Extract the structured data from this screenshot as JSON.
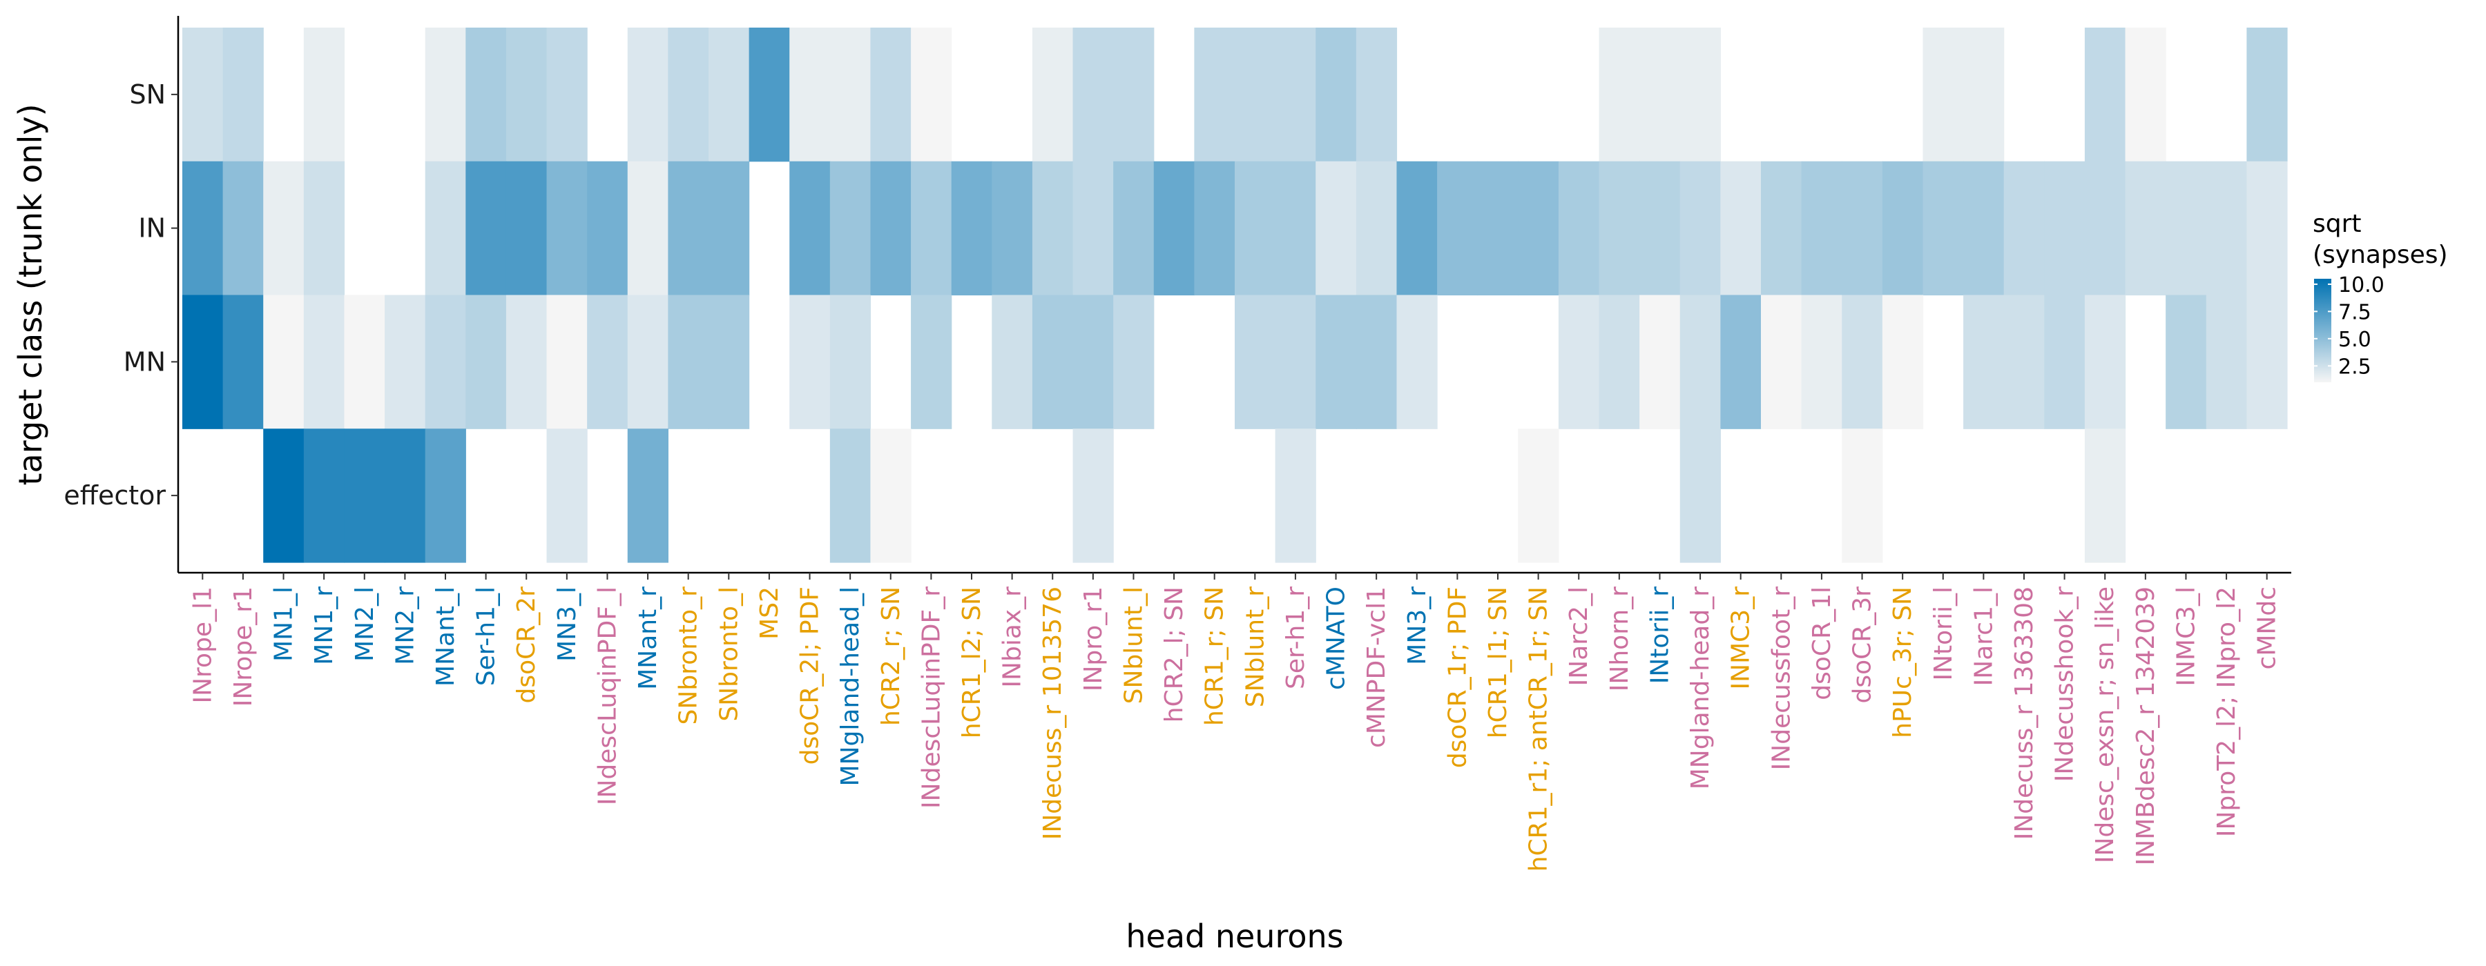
{
  "chart_data": {
    "type": "heatmap",
    "xlabel": "head neurons",
    "ylabel": "target class (trunk only)",
    "rows": [
      "SN",
      "IN",
      "MN",
      "effector"
    ],
    "columns": [
      {
        "name": "INrope_l1",
        "color": "#cc6f9e"
      },
      {
        "name": "INrope_r1",
        "color": "#cc6f9e"
      },
      {
        "name": "MN1_l",
        "color": "#0072b2"
      },
      {
        "name": "MN1_r",
        "color": "#0072b2"
      },
      {
        "name": "MN2_l",
        "color": "#0072b2"
      },
      {
        "name": "MN2_r",
        "color": "#0072b2"
      },
      {
        "name": "MNant_l",
        "color": "#0072b2"
      },
      {
        "name": "Ser-h1_l",
        "color": "#0072b2"
      },
      {
        "name": "dsoCR_2r",
        "color": "#e69f00"
      },
      {
        "name": "MN3_l",
        "color": "#0072b2"
      },
      {
        "name": "INdescLuqinPDF_l",
        "color": "#cc6f9e"
      },
      {
        "name": "MNant_r",
        "color": "#0072b2"
      },
      {
        "name": "SNbronto_r",
        "color": "#e69f00"
      },
      {
        "name": "SNbronto_l",
        "color": "#e69f00"
      },
      {
        "name": "MS2",
        "color": "#e69f00"
      },
      {
        "name": "dsoCR_2l; PDF",
        "color": "#e69f00"
      },
      {
        "name": "MNgland-head_l",
        "color": "#0072b2"
      },
      {
        "name": "hCR2_r; SN",
        "color": "#e69f00"
      },
      {
        "name": "INdescLuqinPDF_r",
        "color": "#cc6f9e"
      },
      {
        "name": "hCR1_l2; SN",
        "color": "#e69f00"
      },
      {
        "name": "INbiax_r",
        "color": "#cc6f9e"
      },
      {
        "name": "INdecuss_r 1013576",
        "color": "#e69f00"
      },
      {
        "name": "INpro_r1",
        "color": "#cc6f9e"
      },
      {
        "name": "SNblunt_l",
        "color": "#e69f00"
      },
      {
        "name": "hCR2_l; SN",
        "color": "#cc6f9e"
      },
      {
        "name": "hCR1_r; SN",
        "color": "#e69f00"
      },
      {
        "name": "SNblunt_r",
        "color": "#e69f00"
      },
      {
        "name": "Ser-h1_r",
        "color": "#cc6f9e"
      },
      {
        "name": "cMNATO",
        "color": "#0072b2"
      },
      {
        "name": "cMNPDF-vcl1",
        "color": "#cc6f9e"
      },
      {
        "name": "MN3_r",
        "color": "#0072b2"
      },
      {
        "name": "dsoCR_1r; PDF",
        "color": "#e69f00"
      },
      {
        "name": "hCR1_l1; SN",
        "color": "#e69f00"
      },
      {
        "name": "hCR1_r1; antCR_1r; SN",
        "color": "#e69f00"
      },
      {
        "name": "INarc2_l",
        "color": "#cc6f9e"
      },
      {
        "name": "INhorn_r",
        "color": "#cc6f9e"
      },
      {
        "name": "INtorii_r",
        "color": "#0072b2"
      },
      {
        "name": "MNgland-head_r",
        "color": "#cc6f9e"
      },
      {
        "name": "INMC3_r",
        "color": "#e69f00"
      },
      {
        "name": "INdecussfoot_r",
        "color": "#cc6f9e"
      },
      {
        "name": "dsoCR_1l",
        "color": "#cc6f9e"
      },
      {
        "name": "dsoCR_3r",
        "color": "#cc6f9e"
      },
      {
        "name": "hPUc_3r; SN",
        "color": "#e69f00"
      },
      {
        "name": "INtorii_l",
        "color": "#cc6f9e"
      },
      {
        "name": "INarc1_l",
        "color": "#cc6f9e"
      },
      {
        "name": "INdecuss_r 1363308",
        "color": "#cc6f9e"
      },
      {
        "name": "INdecusshook_r",
        "color": "#cc6f9e"
      },
      {
        "name": "INdesc_exsn_r; sn_like",
        "color": "#cc6f9e"
      },
      {
        "name": "INMBdesc2_r 1342039",
        "color": "#cc6f9e"
      },
      {
        "name": "INMC3_l",
        "color": "#cc6f9e"
      },
      {
        "name": "INproT2_l2; INpro_l2",
        "color": "#cc6f9e"
      },
      {
        "name": "cMNdc",
        "color": "#cc6f9e"
      }
    ],
    "values": [
      [
        2.5,
        3.0,
        0,
        1.5,
        0,
        0,
        1.5,
        4.0,
        3.5,
        3.0,
        0,
        2.0,
        3.0,
        2.5,
        7.5,
        1.5,
        1.5,
        3.0,
        1.0,
        0,
        0,
        1.5,
        3.0,
        3.0,
        0,
        3.0,
        3.0,
        3.0,
        4.0,
        3.0,
        0,
        0,
        0,
        0,
        0,
        1.5,
        1.5,
        1.5,
        0,
        0,
        0,
        0,
        0,
        1.5,
        1.5,
        0,
        0,
        3.0,
        1.0,
        0,
        0,
        3.5
      ],
      [
        7.5,
        5.0,
        1.5,
        2.5,
        0,
        0,
        2.5,
        7.5,
        7.5,
        5.5,
        6.0,
        1.5,
        5.5,
        5.5,
        0,
        6.5,
        4.5,
        6.0,
        4.0,
        6.0,
        5.5,
        3.5,
        3.0,
        4.5,
        6.5,
        5.5,
        4.0,
        4.0,
        2.0,
        2.5,
        6.5,
        5.0,
        5.0,
        5.0,
        4.0,
        3.5,
        3.5,
        3.0,
        2.0,
        3.5,
        4.0,
        4.0,
        4.5,
        4.0,
        4.0,
        3.0,
        3.0,
        3.0,
        2.5,
        2.5,
        2.5,
        2.0
      ],
      [
        10.5,
        8.5,
        1.0,
        2.0,
        1.0,
        2.0,
        3.0,
        3.5,
        2.0,
        1.0,
        3.0,
        2.0,
        4.0,
        4.0,
        0,
        2.0,
        2.5,
        0,
        3.5,
        0,
        2.5,
        4.0,
        4.0,
        3.0,
        0,
        0,
        3.0,
        3.0,
        4.0,
        4.0,
        2.0,
        0,
        0,
        0,
        2.0,
        2.5,
        1.0,
        2.5,
        5.0,
        1.0,
        1.5,
        2.5,
        1.0,
        0,
        2.5,
        2.5,
        3.0,
        2.0,
        0,
        3.5,
        2.5,
        2.0
      ],
      [
        0,
        0,
        10.5,
        9.0,
        9.0,
        9.0,
        7.0,
        0,
        0,
        2.0,
        0,
        6.0,
        0,
        0,
        0,
        0,
        3.5,
        1.0,
        0,
        0,
        0,
        0,
        2.0,
        0,
        0,
        0,
        0,
        2.0,
        0,
        0,
        0,
        0,
        0,
        1.0,
        0,
        0,
        0,
        2.5,
        0,
        0,
        0,
        1.0,
        0,
        0,
        0,
        0,
        0,
        1.5,
        0,
        0,
        0,
        0
      ]
    ],
    "legend": {
      "title_lines": [
        "sqrt",
        "(synapses)"
      ],
      "ticks": [
        10.0,
        7.5,
        5.0,
        2.5
      ],
      "tick_labels": [
        "10.0",
        "7.5",
        "5.0",
        "2.5"
      ],
      "range": [
        1,
        10.5
      ],
      "low_color": "#f5f5f5",
      "high_color": "#0072b2",
      "placement": "right"
    },
    "grid": false
  }
}
